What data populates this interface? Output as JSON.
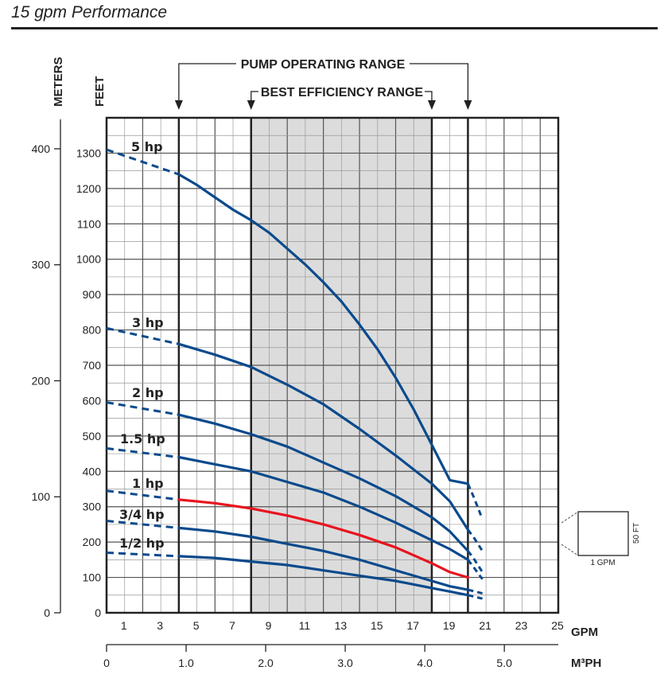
{
  "page": {
    "title": "15 gpm Performance"
  },
  "chart_data": {
    "type": "line",
    "title": "15 gpm Performance",
    "xlabel": "GPM",
    "x2label": "M³PH",
    "ylabel_left": "METERS",
    "ylabel_right": "FEET",
    "xlim": [
      0,
      25
    ],
    "ylim_feet": [
      0,
      1400
    ],
    "x_ticks": [
      "1",
      "3",
      "5",
      "7",
      "9",
      "11",
      "13",
      "15",
      "17",
      "19",
      "21",
      "23",
      "25"
    ],
    "m3ph_ticks": [
      "0",
      "1.0",
      "2.0",
      "3.0",
      "4.0",
      "5.0"
    ],
    "feet_ticks": [
      "0",
      "100",
      "200",
      "300",
      "400",
      "500",
      "600",
      "700",
      "800",
      "900",
      "1000",
      "1100",
      "1200",
      "1300"
    ],
    "meter_ticks": [
      "0",
      "100",
      "200",
      "300",
      "400"
    ],
    "pump_operating_range": {
      "label": "PUMP OPERATING RANGE",
      "from_gpm": 4,
      "to_gpm": 20
    },
    "best_efficiency_range": {
      "label": "BEST EFFICIENCY RANGE",
      "from_gpm": 8,
      "to_gpm": 18
    },
    "scale_box": {
      "x_label": "1 GPM",
      "y_label": "50 FT"
    },
    "series": [
      {
        "name": "5 hp",
        "color": "#0b4a8c",
        "dashed": [
          [
            0,
            1310
          ],
          [
            4,
            1240
          ]
        ],
        "solid": [
          [
            4,
            1240
          ],
          [
            5,
            1210
          ],
          [
            6,
            1175
          ],
          [
            7,
            1140
          ],
          [
            8,
            1110
          ],
          [
            9,
            1075
          ],
          [
            10,
            1030
          ],
          [
            11,
            985
          ],
          [
            12,
            935
          ],
          [
            13,
            880
          ],
          [
            14,
            815
          ],
          [
            15,
            745
          ],
          [
            16,
            665
          ],
          [
            17,
            575
          ],
          [
            18,
            475
          ],
          [
            19,
            375
          ],
          [
            20,
            365
          ]
        ],
        "dashed_end": [
          [
            20,
            365
          ],
          [
            20.3,
            330
          ],
          [
            20.8,
            265
          ]
        ]
      },
      {
        "name": "3 hp",
        "color": "#0b4a8c",
        "dashed": [
          [
            0,
            805
          ],
          [
            4,
            760
          ]
        ],
        "solid": [
          [
            4,
            760
          ],
          [
            6,
            730
          ],
          [
            8,
            695
          ],
          [
            10,
            645
          ],
          [
            12,
            590
          ],
          [
            14,
            520
          ],
          [
            16,
            445
          ],
          [
            18,
            365
          ],
          [
            19,
            315
          ],
          [
            20,
            235
          ]
        ],
        "dashed_end": [
          [
            20,
            235
          ],
          [
            20.3,
            215
          ],
          [
            20.8,
            175
          ]
        ]
      },
      {
        "name": "2 hp",
        "color": "#0b4a8c",
        "dashed": [
          [
            0,
            595
          ],
          [
            4,
            560
          ]
        ],
        "solid": [
          [
            4,
            560
          ],
          [
            6,
            535
          ],
          [
            8,
            505
          ],
          [
            10,
            470
          ],
          [
            12,
            425
          ],
          [
            14,
            380
          ],
          [
            16,
            330
          ],
          [
            18,
            270
          ],
          [
            19,
            230
          ],
          [
            20,
            175
          ]
        ],
        "dashed_end": [
          [
            20,
            175
          ],
          [
            20.3,
            155
          ],
          [
            20.8,
            115
          ]
        ]
      },
      {
        "name": "1.5 hp",
        "color": "#0b4a8c",
        "dashed": [
          [
            0,
            465
          ],
          [
            4,
            440
          ]
        ],
        "solid": [
          [
            4,
            440
          ],
          [
            6,
            420
          ],
          [
            8,
            400
          ],
          [
            10,
            370
          ],
          [
            12,
            340
          ],
          [
            14,
            300
          ],
          [
            16,
            255
          ],
          [
            18,
            205
          ],
          [
            19,
            180
          ],
          [
            20,
            150
          ]
        ],
        "dashed_end": [
          [
            20,
            150
          ],
          [
            20.3,
            130
          ],
          [
            20.8,
            95
          ]
        ]
      },
      {
        "name": "1 hp",
        "color": "#e8141e",
        "dashed": [
          [
            0,
            345
          ],
          [
            4,
            320
          ]
        ],
        "solid": [
          [
            4,
            320
          ],
          [
            6,
            310
          ],
          [
            8,
            295
          ],
          [
            10,
            275
          ],
          [
            12,
            250
          ],
          [
            14,
            220
          ],
          [
            16,
            185
          ],
          [
            18,
            140
          ],
          [
            19,
            115
          ],
          [
            20,
            100
          ]
        ],
        "dashed_end": []
      },
      {
        "name": "3/4 hp",
        "color": "#0b4a8c",
        "dashed": [
          [
            0,
            260
          ],
          [
            4,
            240
          ]
        ],
        "solid": [
          [
            4,
            240
          ],
          [
            6,
            230
          ],
          [
            8,
            215
          ],
          [
            10,
            195
          ],
          [
            12,
            175
          ],
          [
            14,
            150
          ],
          [
            16,
            120
          ],
          [
            18,
            90
          ],
          [
            19,
            75
          ],
          [
            20,
            65
          ]
        ],
        "dashed_end": [
          [
            20,
            65
          ],
          [
            20.4,
            60
          ],
          [
            20.8,
            55
          ]
        ]
      },
      {
        "name": "1/2 hp",
        "color": "#0b4a8c",
        "dashed": [
          [
            0,
            170
          ],
          [
            4,
            160
          ]
        ],
        "solid": [
          [
            4,
            160
          ],
          [
            6,
            155
          ],
          [
            8,
            145
          ],
          [
            10,
            135
          ],
          [
            12,
            120
          ],
          [
            14,
            105
          ],
          [
            16,
            90
          ],
          [
            18,
            70
          ],
          [
            19,
            60
          ],
          [
            20,
            50
          ]
        ],
        "dashed_end": [
          [
            20,
            50
          ],
          [
            20.4,
            45
          ],
          [
            20.8,
            40
          ]
        ]
      }
    ],
    "curve_labels": [
      "5 hp",
      "3 hp",
      "2 hp",
      "1.5 hp",
      "1 hp",
      "3/4 hp",
      "1/2 hp"
    ]
  }
}
